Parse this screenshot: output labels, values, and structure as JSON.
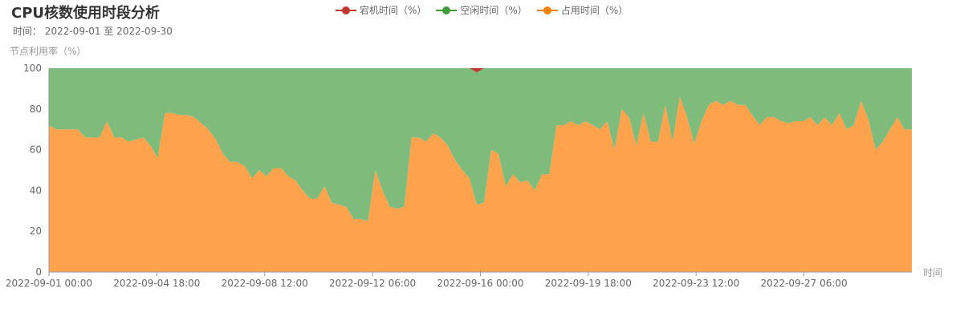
{
  "title": "CPU核数使用时段分析",
  "subtitle": "时间： 2022-09-01 至 2022-09-30",
  "chart_data": {
    "type": "area",
    "title": "CPU核数使用时段分析",
    "ylabel": "节点利用率（%）",
    "xlabel": "时间",
    "ylim": [
      0,
      100
    ],
    "yticks": [
      0,
      20,
      40,
      60,
      80,
      100
    ],
    "xticks": [
      "2022-09-01 00:00",
      "2022-09-04 18:00",
      "2022-09-08 12:00",
      "2022-09-12 06:00",
      "2022-09-16 00:00",
      "2022-09-19 18:00",
      "2022-09-23 12:00",
      "2022-09-27 06:00"
    ],
    "x_start": "2022-09-01 00:00",
    "x_end": "2022-09-30 23:00",
    "x_step_hours": 6,
    "stacked": true,
    "legend_position": "top-center",
    "series": [
      {
        "name": "宕机时间（%）",
        "color": "#c23531",
        "values": [
          0,
          0,
          0,
          0,
          0,
          0,
          0,
          0,
          0,
          0,
          0,
          0,
          0,
          0,
          0,
          0,
          0,
          0,
          0,
          0,
          0,
          0,
          0,
          0,
          0,
          0,
          0,
          0,
          0,
          0,
          0,
          0,
          0,
          0,
          0,
          0,
          0,
          0,
          0,
          0,
          0,
          0,
          0,
          0,
          0,
          0,
          0,
          0,
          0,
          0,
          0,
          0,
          0,
          0,
          0,
          0,
          0,
          0,
          0,
          2,
          0,
          0,
          0,
          0,
          0,
          0,
          0,
          0,
          0,
          0,
          0,
          0,
          0,
          0,
          0,
          0,
          0,
          0,
          0,
          0,
          0,
          0,
          0,
          0,
          0,
          0,
          0,
          0,
          0,
          0,
          0,
          0,
          0,
          0,
          0,
          0,
          0,
          0,
          0,
          0,
          0,
          0,
          0,
          0,
          0,
          0,
          0,
          0,
          0,
          0,
          0,
          0,
          0,
          0,
          0,
          0,
          0,
          0,
          0,
          0
        ]
      },
      {
        "name": "空闲时间（%）",
        "color": "#7fbb7b",
        "values": [
          28,
          30,
          30,
          30,
          30,
          34,
          34,
          34,
          26,
          34,
          34,
          36,
          35,
          34,
          38,
          44,
          22,
          22,
          23,
          23,
          24,
          27,
          30,
          35,
          42,
          46,
          46,
          48,
          54,
          50,
          53,
          49,
          49,
          53,
          55,
          60,
          64,
          64,
          58,
          66,
          67,
          68,
          74,
          74,
          75,
          50,
          60,
          68,
          69,
          68,
          34,
          34,
          36,
          32,
          34,
          38,
          45,
          50,
          54,
          65,
          66,
          40,
          42,
          58,
          52,
          56,
          55,
          60,
          52,
          52,
          28,
          28,
          26,
          28,
          26,
          28,
          30,
          26,
          40,
          20,
          24,
          38,
          22,
          36,
          36,
          18,
          36,
          14,
          24,
          37,
          26,
          18,
          16,
          18,
          16,
          18,
          18,
          23,
          28,
          24,
          24,
          26,
          27,
          26,
          26,
          24,
          28,
          24,
          28,
          22,
          30,
          28,
          16,
          25,
          40,
          36,
          30,
          24,
          30,
          30
        ]
      },
      {
        "name": "占用时间（%）",
        "color": "#ffa24c",
        "values": [
          72,
          70,
          70,
          70,
          70,
          66,
          66,
          66,
          74,
          66,
          66,
          64,
          65,
          66,
          62,
          56,
          78,
          78,
          77,
          77,
          76,
          73,
          70,
          65,
          58,
          54,
          54,
          52,
          46,
          50,
          47,
          51,
          51,
          47,
          45,
          40,
          36,
          36,
          42,
          34,
          33,
          32,
          26,
          26,
          25,
          50,
          40,
          32,
          31,
          32,
          66,
          66,
          64,
          68,
          66,
          62,
          55,
          50,
          46,
          33,
          34,
          60,
          58,
          42,
          48,
          44,
          45,
          40,
          48,
          48,
          72,
          72,
          74,
          72,
          74,
          72,
          70,
          74,
          60,
          80,
          76,
          62,
          78,
          64,
          64,
          82,
          64,
          86,
          76,
          63,
          74,
          82,
          84,
          82,
          84,
          82,
          82,
          77,
          72,
          76,
          76,
          74,
          73,
          74,
          74,
          76,
          72,
          76,
          72,
          78,
          70,
          72,
          84,
          75,
          60,
          64,
          70,
          76,
          70,
          70
        ]
      }
    ]
  }
}
